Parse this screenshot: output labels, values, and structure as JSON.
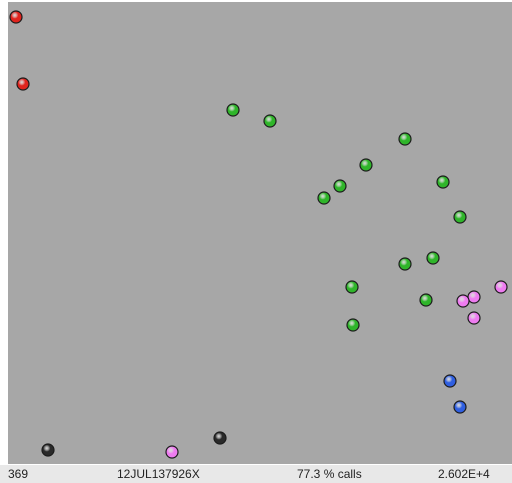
{
  "colors": {
    "background": "#a7a7a7",
    "status_bar": "#e8e8e8",
    "red": "#e0241e",
    "green": "#2fb52a",
    "magenta": "#ee7cf0",
    "blue": "#2f5fe0",
    "black": "#2a2a2a"
  },
  "chart_data": {
    "type": "scatter",
    "title": "",
    "xlabel": "",
    "ylabel": "",
    "grid": false,
    "series": [
      {
        "color": "red",
        "points": [
          [
            16,
            17
          ],
          [
            23,
            84
          ]
        ]
      },
      {
        "color": "green",
        "points": [
          [
            233,
            110
          ],
          [
            270,
            121
          ],
          [
            405,
            139
          ],
          [
            366,
            165
          ],
          [
            443,
            182
          ],
          [
            340,
            186
          ],
          [
            324,
            198
          ],
          [
            460,
            217
          ],
          [
            433,
            258
          ],
          [
            405,
            264
          ],
          [
            352,
            287
          ],
          [
            426,
            300
          ],
          [
            353,
            325
          ]
        ]
      },
      {
        "color": "magenta",
        "points": [
          [
            501,
            287
          ],
          [
            474,
            297
          ],
          [
            463,
            301
          ],
          [
            474,
            318
          ],
          [
            172,
            452
          ]
        ]
      },
      {
        "color": "blue",
        "points": [
          [
            450,
            381
          ],
          [
            460,
            407
          ]
        ]
      },
      {
        "color": "black",
        "points": [
          [
            48,
            450
          ],
          [
            220,
            438
          ]
        ]
      }
    ]
  },
  "status": {
    "count": "369",
    "id": "12JUL137926X",
    "calls": "77.3 % calls",
    "value": "2.602E+4"
  }
}
